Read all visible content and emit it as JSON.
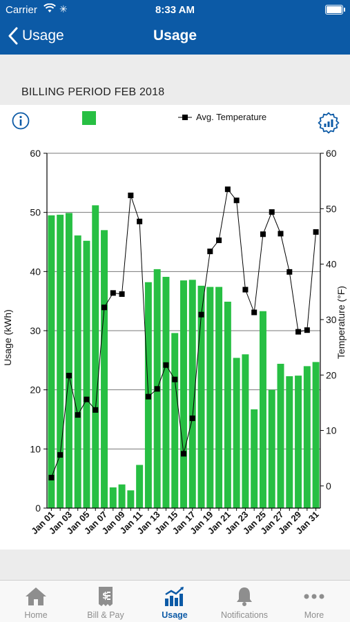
{
  "status_bar": {
    "carrier": "Carrier",
    "time": "8:33 AM"
  },
  "nav": {
    "back_label": "Usage",
    "title": "Usage"
  },
  "billing_period": "BILLING PERIOD FEB 2018",
  "legend": {
    "temperature_label": "Avg. Temperature"
  },
  "colors": {
    "header": "#0c5aa6",
    "bar": "#27bf43",
    "temp_line": "#000000",
    "tab_active": "#0c5aa6",
    "tab_inactive": "#8e8e8e"
  },
  "chart_data": {
    "type": "bar",
    "categories": [
      "Jan 01",
      "Jan 02",
      "Jan 03",
      "Jan 04",
      "Jan 05",
      "Jan 06",
      "Jan 07",
      "Jan 08",
      "Jan 09",
      "Jan 10",
      "Jan 11",
      "Jan 12",
      "Jan 13",
      "Jan 14",
      "Jan 15",
      "Jan 16",
      "Jan 17",
      "Jan 18",
      "Jan 19",
      "Jan 20",
      "Jan 21",
      "Jan 22",
      "Jan 23",
      "Jan 24",
      "Jan 25",
      "Jan 26",
      "Jan 27",
      "Jan 28",
      "Jan 29",
      "Jan 30",
      "Jan 31"
    ],
    "tick_labels": [
      "Jan 01",
      "Jan 03",
      "Jan 05",
      "Jan 07",
      "Jan 09",
      "Jan 11",
      "Jan 13",
      "Jan 15",
      "Jan 17",
      "Jan 19",
      "Jan 21",
      "Jan 23",
      "Jan 25",
      "Jan 27",
      "Jan 29",
      "Jan 31"
    ],
    "series": [
      {
        "axis": "left",
        "kind": "bar",
        "values": [
          49.5,
          49.6,
          49.9,
          46.1,
          45.2,
          51.2,
          47.0,
          3.5,
          4.0,
          3.0,
          7.3,
          38.2,
          40.4,
          39.1,
          29.6,
          38.5,
          38.6,
          37.6,
          37.4,
          37.4,
          34.9,
          25.4,
          26.0,
          16.7,
          33.3,
          20.0,
          24.4,
          22.3,
          22.4,
          24.0,
          24.7
        ]
      },
      {
        "name": "Avg. Temperature",
        "axis": "right",
        "kind": "line",
        "values": [
          1.5,
          5.6,
          19.9,
          12.8,
          15.6,
          13.7,
          32.2,
          34.8,
          34.6,
          52.4,
          47.7,
          16.1,
          17.5,
          21.8,
          19.2,
          5.8,
          12.2,
          30.9,
          42.3,
          44.3,
          53.5,
          51.5,
          35.4,
          31.3,
          45.4,
          49.4,
          45.5,
          38.6,
          27.8,
          28.1,
          45.8
        ]
      }
    ],
    "ylabel": "Usage (kWh)",
    "y2label": "Temperature (°F)",
    "ylim": [
      0,
      60
    ],
    "y2lim": [
      -4,
      60
    ],
    "yticks": [
      0,
      10,
      20,
      30,
      40,
      50,
      60
    ],
    "y2ticks": [
      0,
      10,
      20,
      30,
      40,
      50,
      60
    ],
    "grid": true
  },
  "tabs": [
    {
      "label": "Home",
      "icon": "home-icon",
      "active": false
    },
    {
      "label": "Bill & Pay",
      "icon": "bill-icon",
      "active": false
    },
    {
      "label": "Usage",
      "icon": "usage-chart-icon",
      "active": true
    },
    {
      "label": "Notifications",
      "icon": "bell-icon",
      "active": false
    },
    {
      "label": "More",
      "icon": "more-dots-icon",
      "active": false
    }
  ]
}
